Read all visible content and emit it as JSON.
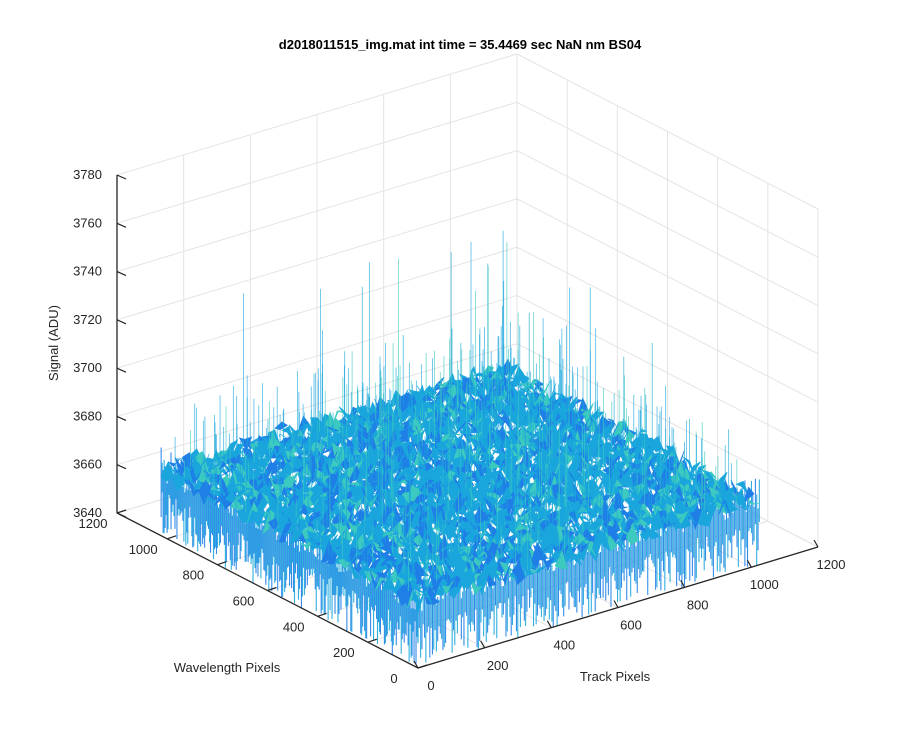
{
  "chart_data": {
    "type": "surface-3d",
    "title": "d2018011515_img.mat int time = 35.4469 sec  NaN nm BS04",
    "xlabel": "Track Pixels",
    "ylabel": "Wavelength Pixels",
    "zlabel": "Signal (ADU)",
    "x_range": [
      0,
      1200
    ],
    "y_range": [
      0,
      1200
    ],
    "z_range": [
      3640,
      3780
    ],
    "x_ticks": [
      "0",
      "200",
      "400",
      "600",
      "800",
      "1000",
      "1200"
    ],
    "y_ticks": [
      "0",
      "200",
      "400",
      "600",
      "800",
      "1000",
      "1200"
    ],
    "z_ticks": [
      "3640",
      "3660",
      "3680",
      "3700",
      "3720",
      "3740",
      "3760",
      "3780"
    ],
    "surface": {
      "x_extent": [
        0,
        1024
      ],
      "y_extent": [
        0,
        1024
      ],
      "z_mean": 3667,
      "z_noise_range": [
        3640,
        3735
      ]
    },
    "grid": true,
    "colors": {
      "surface_low": "#1f7fe6",
      "surface_mid": "#1aa6dc",
      "surface_high": "#3cc9c0",
      "grid": "#e4e4e4",
      "axis": "#262626"
    }
  }
}
